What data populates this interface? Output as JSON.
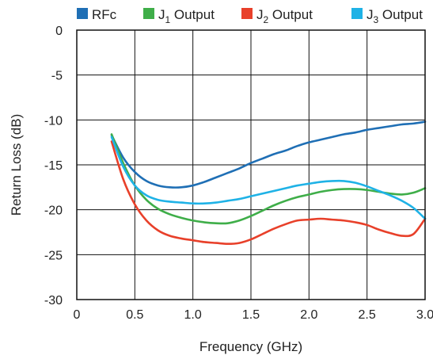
{
  "chart_data": {
    "type": "line",
    "xlabel": "Frequency (GHz)",
    "ylabel": "Return Loss (dB)",
    "xlim": [
      0,
      3.0
    ],
    "ylim": [
      -30,
      0
    ],
    "xticks": [
      "0",
      "0.5",
      "1.0",
      "1.5",
      "2.0",
      "2.5",
      "3.0"
    ],
    "yticks": [
      "0",
      "-5",
      "-10",
      "-15",
      "-20",
      "-25",
      "-30"
    ],
    "grid": true,
    "legend_position": "top",
    "x": [
      0.3,
      0.4,
      0.5,
      0.6,
      0.7,
      0.8,
      0.9,
      1.0,
      1.1,
      1.2,
      1.3,
      1.4,
      1.5,
      1.6,
      1.7,
      1.8,
      1.9,
      2.0,
      2.1,
      2.2,
      2.3,
      2.4,
      2.5,
      2.6,
      2.7,
      2.8,
      2.9,
      3.0
    ],
    "series": [
      {
        "name": "RFc",
        "legend_main": "RFc",
        "legend_sub": "",
        "legend_suffix": "",
        "color": "#1f6fb5",
        "values": [
          -11.7,
          -14.2,
          -15.8,
          -16.8,
          -17.3,
          -17.5,
          -17.5,
          -17.3,
          -16.9,
          -16.4,
          -15.9,
          -15.4,
          -14.8,
          -14.3,
          -13.8,
          -13.4,
          -12.9,
          -12.5,
          -12.2,
          -11.9,
          -11.6,
          -11.4,
          -11.1,
          -10.9,
          -10.7,
          -10.5,
          -10.4,
          -10.2
        ]
      },
      {
        "name": "J1 Output",
        "legend_main": "J",
        "legend_sub": "1",
        "legend_suffix": " Output",
        "color": "#3fae49",
        "values": [
          -11.6,
          -14.8,
          -17.3,
          -18.9,
          -19.9,
          -20.5,
          -20.9,
          -21.2,
          -21.4,
          -21.5,
          -21.5,
          -21.2,
          -20.7,
          -20.1,
          -19.5,
          -19.0,
          -18.6,
          -18.3,
          -18.0,
          -17.8,
          -17.7,
          -17.7,
          -17.8,
          -18.0,
          -18.2,
          -18.3,
          -18.1,
          -17.6
        ]
      },
      {
        "name": "J2 Output",
        "legend_main": "J",
        "legend_sub": "2",
        "legend_suffix": " Output",
        "color": "#e8402a",
        "values": [
          -12.4,
          -16.6,
          -19.4,
          -21.2,
          -22.3,
          -22.9,
          -23.2,
          -23.4,
          -23.6,
          -23.7,
          -23.8,
          -23.7,
          -23.3,
          -22.7,
          -22.1,
          -21.6,
          -21.2,
          -21.1,
          -21.0,
          -21.1,
          -21.2,
          -21.4,
          -21.7,
          -22.2,
          -22.6,
          -22.9,
          -22.7,
          -21.0
        ]
      },
      {
        "name": "J3 Output",
        "legend_main": "J",
        "legend_sub": "3",
        "legend_suffix": " Output",
        "color": "#1fb2e6",
        "values": [
          -11.9,
          -15.2,
          -17.3,
          -18.4,
          -18.9,
          -19.1,
          -19.2,
          -19.3,
          -19.3,
          -19.2,
          -19.0,
          -18.8,
          -18.5,
          -18.2,
          -17.9,
          -17.6,
          -17.3,
          -17.1,
          -16.9,
          -16.8,
          -16.8,
          -17.0,
          -17.4,
          -17.9,
          -18.4,
          -19.0,
          -19.8,
          -21.0
        ]
      }
    ]
  }
}
